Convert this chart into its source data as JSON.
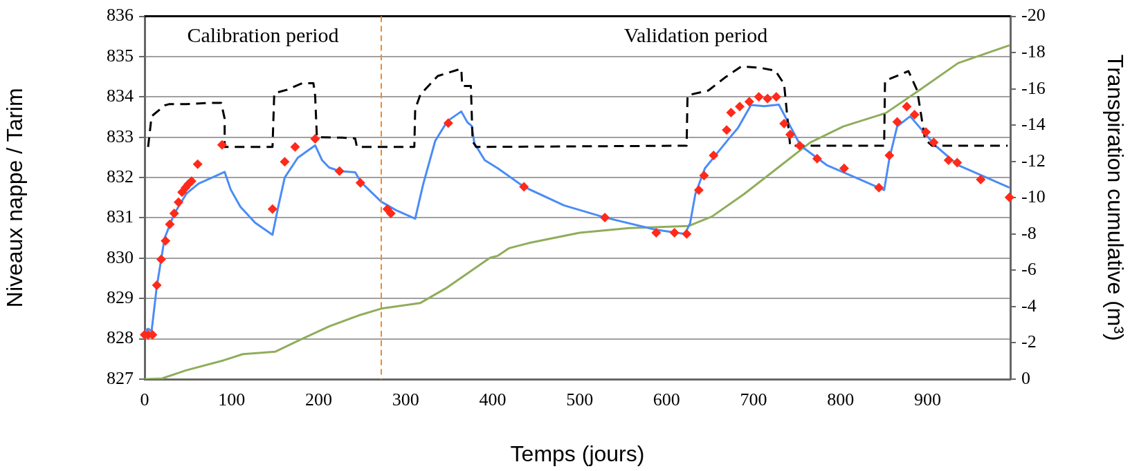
{
  "chart_data": {
    "type": "line",
    "xlabel": "Temps (jours)",
    "ylabel": "Niveaux nappe / Tarim",
    "y2label": "Transpiration cumulative (m³)",
    "xlim": [
      0,
      995
    ],
    "xticks": [
      0,
      100,
      200,
      300,
      400,
      500,
      600,
      700,
      800,
      900
    ],
    "ylim": [
      827,
      836
    ],
    "yticks": [
      827,
      828,
      829,
      830,
      831,
      832,
      833,
      834,
      835,
      836
    ],
    "y2lim": [
      0,
      -20
    ],
    "y2ticks": [
      0,
      -2,
      -4,
      -6,
      -8,
      -10,
      -12,
      -14,
      -16,
      -18,
      -20
    ],
    "grid": "y",
    "legend": false,
    "series": [
      {
        "color": "#000000",
        "line_style": "dashed",
        "marker": "none",
        "x": [
          4,
          8,
          23,
          28,
          48,
          74,
          88,
          92,
          92,
          147,
          149,
          164,
          181,
          194,
          196,
          198,
          227,
          242,
          244,
          310,
          311,
          317,
          337,
          364,
          365,
          375,
          377,
          381,
          623,
          624,
          648,
          667,
          686,
          708,
          725,
          735,
          742,
          850,
          851,
          878,
          888,
          897,
          905,
          992
        ],
        "values": [
          832.76,
          833.52,
          833.79,
          833.82,
          833.82,
          833.85,
          833.85,
          833.46,
          832.76,
          832.76,
          834.09,
          834.18,
          834.34,
          834.34,
          834.03,
          833.0,
          832.99,
          832.97,
          832.76,
          832.76,
          833.7,
          834.06,
          834.52,
          834.7,
          834.27,
          834.27,
          832.9,
          832.76,
          832.79,
          834.04,
          834.16,
          834.48,
          834.76,
          834.72,
          834.65,
          834.32,
          832.79,
          832.79,
          834.4,
          834.64,
          834.16,
          832.95,
          832.79,
          832.79
        ]
      },
      {
        "color": "#4a8cf7",
        "line_style": "solid",
        "marker": "none",
        "x": [
          0,
          4,
          8,
          14,
          23,
          34,
          48,
          62,
          92,
          99,
          110,
          127,
          147,
          153,
          161,
          176,
          196,
          204,
          212,
          224,
          242,
          249,
          272,
          289,
          311,
          320,
          334,
          348,
          364,
          371,
          376,
          379,
          391,
          406,
          436,
          482,
          529,
          587,
          621,
          627,
          633,
          644,
          659,
          671,
          682,
          697,
          712,
          729,
          739,
          754,
          784,
          814,
          850,
          856,
          865,
          880,
          893,
          909,
          935,
          994
        ],
        "values": [
          828.19,
          828.25,
          828.19,
          829.3,
          830.5,
          831.1,
          831.6,
          831.85,
          832.14,
          831.7,
          831.28,
          830.88,
          830.58,
          831.22,
          832.0,
          832.49,
          832.8,
          832.43,
          832.25,
          832.16,
          832.13,
          831.88,
          831.4,
          831.19,
          830.98,
          831.82,
          832.91,
          833.4,
          833.64,
          833.37,
          833.28,
          832.85,
          832.43,
          832.23,
          831.77,
          831.31,
          831.01,
          830.71,
          830.6,
          830.87,
          831.59,
          832.23,
          832.63,
          832.95,
          833.23,
          833.8,
          833.77,
          833.81,
          833.4,
          832.79,
          832.31,
          832.03,
          831.69,
          832.47,
          833.27,
          833.52,
          833.19,
          832.79,
          832.31,
          831.75
        ]
      },
      {
        "axis": "y2",
        "color": "#8fad5a",
        "line_style": "solid",
        "marker": "none",
        "x": [
          0,
          20,
          48,
          91,
          113,
          150,
          176,
          212,
          246,
          272,
          317,
          346,
          397,
          406,
          419,
          444,
          500,
          557,
          625,
          652,
          689,
          727,
          765,
          803,
          852,
          890,
          935,
          994
        ],
        "values": [
          0,
          -0.04,
          -0.49,
          -1.04,
          -1.38,
          -1.51,
          -2.11,
          -2.91,
          -3.51,
          -3.89,
          -4.2,
          -5.0,
          -6.69,
          -6.8,
          -7.22,
          -7.53,
          -8.07,
          -8.33,
          -8.44,
          -8.96,
          -10.2,
          -11.62,
          -13.04,
          -13.93,
          -14.67,
          -15.91,
          -17.42,
          -18.4
        ]
      },
      {
        "type": "scatter",
        "color": "#ff2a1a",
        "marker": "diamond",
        "x": [
          0,
          4,
          9,
          14,
          19,
          24,
          29,
          34,
          39,
          43,
          47,
          50,
          54,
          61,
          89,
          147,
          161,
          173,
          196,
          224,
          248,
          279,
          283,
          349,
          436,
          529,
          588,
          609,
          623,
          637,
          643,
          654,
          669,
          674,
          684,
          695,
          706,
          716,
          726,
          735,
          742,
          753,
          773,
          804,
          844,
          856,
          865,
          876,
          885,
          898,
          907,
          924,
          934,
          961,
          994
        ],
        "values": [
          828.1,
          828.1,
          828.1,
          829.33,
          829.97,
          830.43,
          830.84,
          831.11,
          831.39,
          831.64,
          831.75,
          831.83,
          831.91,
          832.33,
          832.81,
          831.22,
          832.39,
          832.76,
          832.96,
          832.16,
          831.87,
          831.22,
          831.11,
          833.35,
          831.77,
          831.01,
          830.63,
          830.63,
          830.6,
          831.69,
          832.05,
          832.55,
          833.18,
          833.61,
          833.76,
          833.88,
          834.0,
          833.96,
          834.0,
          833.34,
          833.07,
          832.79,
          832.47,
          832.23,
          831.75,
          832.55,
          833.38,
          833.76,
          833.56,
          833.13,
          832.87,
          832.43,
          832.37,
          831.95,
          831.51
        ]
      }
    ],
    "ref_lines": [
      {
        "axis": "x",
        "value": 272,
        "color": "#f08a24",
        "line_style": "dashed"
      }
    ],
    "annotations": [
      "Calibration period",
      "Validation period"
    ]
  }
}
